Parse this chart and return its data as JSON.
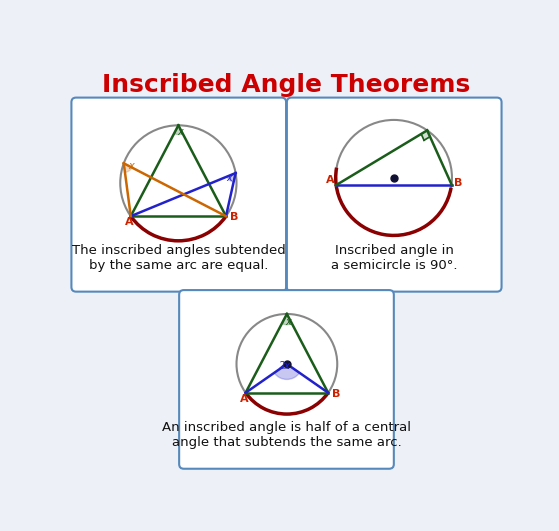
{
  "title": "Inscribed Angle Theorems",
  "title_color": "#cc0000",
  "title_fontsize": 18,
  "background_color": "#eef0f8",
  "box_edge_color": "#5588bb",
  "box1_text": "The inscribed angles subtended\nby the same arc are equal.",
  "box2_text": "Inscribed angle in\na semicircle is 90°.",
  "box3_text": "An inscribed angle is half of a central\nangle that subtends the same arc.",
  "dark_red": "#8b0000",
  "dark_green": "#1a5c1a",
  "orange": "#cc6600",
  "blue": "#2222cc",
  "circle_gray": "#888888",
  "dot_color": "#111133",
  "label_red": "#cc2200",
  "text_color": "#111111"
}
